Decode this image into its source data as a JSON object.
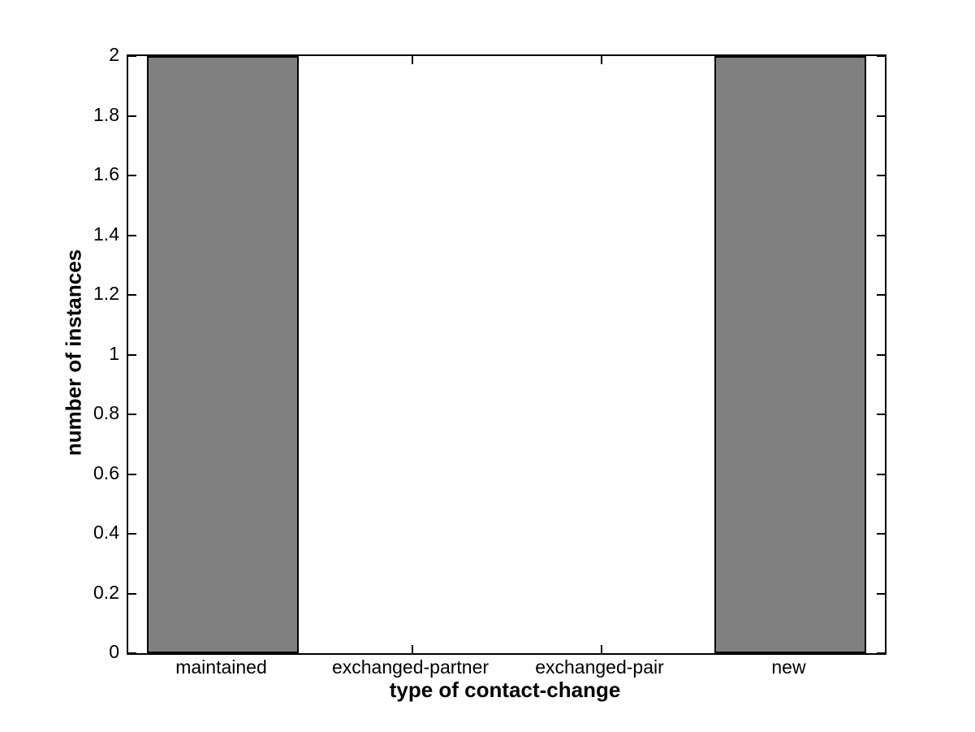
{
  "figure": {
    "background": "#ffffff"
  },
  "chart_data": {
    "type": "bar",
    "title": "",
    "xlabel": "type of contact-change",
    "ylabel": "number of instances",
    "categories": [
      "maintained",
      "exchanged-partner",
      "exchanged-pair",
      "new"
    ],
    "values": [
      2,
      0,
      0,
      2
    ],
    "ylim": [
      0,
      2
    ],
    "yticks": [
      0,
      0.2,
      0.4,
      0.6,
      0.8,
      1,
      1.2,
      1.4,
      1.6,
      1.8,
      2
    ],
    "ytick_labels": [
      "0",
      "0.2",
      "0.4",
      "0.6",
      "0.8",
      "1",
      "1.2",
      "1.4",
      "1.6",
      "1.8",
      "2"
    ],
    "bar_color": "#808080",
    "bar_edge_color": "#000000",
    "bar_width_fraction": 0.8,
    "grid": false,
    "box": true,
    "tick_direction": "in",
    "legend": null
  }
}
